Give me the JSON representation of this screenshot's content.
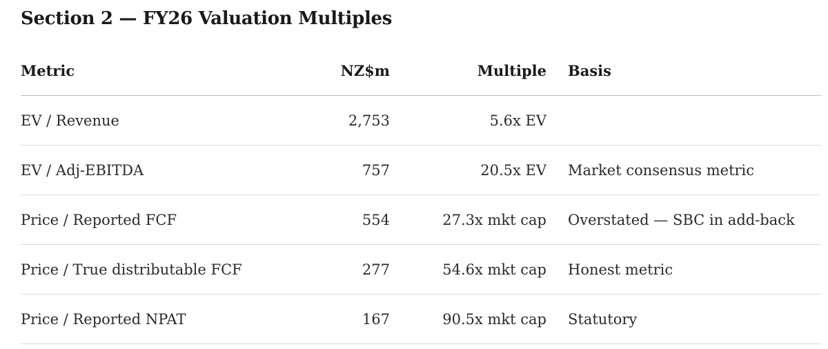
{
  "section": {
    "title": "Section 2 — FY26 Valuation Multiples"
  },
  "table": {
    "headers": {
      "metric": "Metric",
      "value": "NZ$m",
      "multiple": "Multiple",
      "basis": "Basis"
    },
    "rows": [
      {
        "metric": "EV / Revenue",
        "value": "2,753",
        "multiple": "5.6x EV",
        "basis": ""
      },
      {
        "metric": "EV / Adj-EBITDA",
        "value": "757",
        "multiple": "20.5x EV",
        "basis": "Market consensus metric"
      },
      {
        "metric": "Price / Reported FCF",
        "value": "554",
        "multiple": "27.3x mkt cap",
        "basis": "Overstated — SBC in add-back"
      },
      {
        "metric": "Price / True distributable FCF",
        "value": "277",
        "multiple": "54.6x mkt cap",
        "basis": "Honest metric"
      },
      {
        "metric": "Price / Reported NPAT",
        "value": "167",
        "multiple": "90.5x mkt cap",
        "basis": "Statutory"
      }
    ]
  }
}
